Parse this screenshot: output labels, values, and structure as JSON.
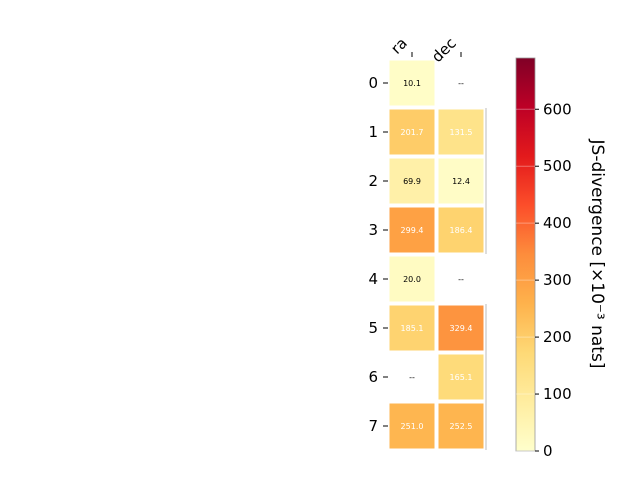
{
  "chart_data": {
    "type": "heatmap",
    "rows": [
      "0",
      "1",
      "2",
      "3",
      "4",
      "5",
      "6",
      "7"
    ],
    "columns": [
      "ra",
      "dec"
    ],
    "values": [
      [
        10.1,
        null
      ],
      [
        201.7,
        131.5
      ],
      [
        69.9,
        12.4
      ],
      [
        299.4,
        186.4
      ],
      [
        20.0,
        null
      ],
      [
        185.1,
        329.4
      ],
      [
        null,
        165.1
      ],
      [
        251.0,
        252.5
      ]
    ],
    "labels": [
      [
        "10.1",
        "--"
      ],
      [
        "201.7",
        "131.5"
      ],
      [
        "69.9",
        "12.4"
      ],
      [
        "299.4",
        "186.4"
      ],
      [
        "20.0",
        "--"
      ],
      [
        "185.1",
        "329.4"
      ],
      [
        "--",
        "165.1"
      ],
      [
        "251.0",
        "252.5"
      ]
    ],
    "colorbar": {
      "label": "JS-divergence [×10⁻³ nats]",
      "ticks": [
        "0",
        "100",
        "200",
        "300",
        "400",
        "500",
        "600"
      ],
      "range": [
        0,
        690
      ],
      "colormap": "YlOrRd"
    },
    "grid": false
  }
}
